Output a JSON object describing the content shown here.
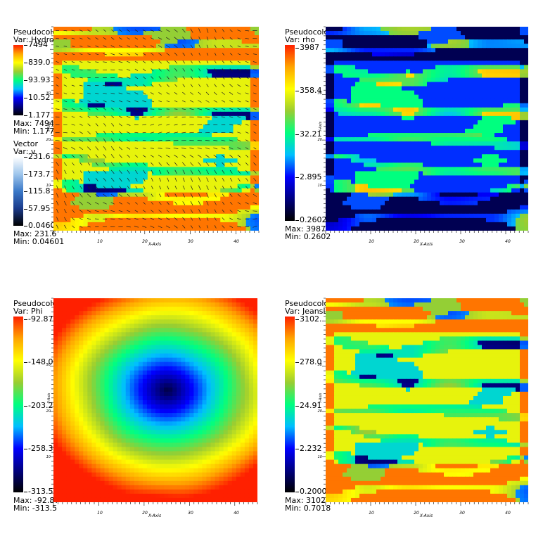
{
  "chart_data": [
    {
      "type": "heatmap",
      "title": "Pseudocolor",
      "variable_label": "Var: Hydro",
      "legend_ticks": [
        "7494",
        "839.0",
        "93.93",
        "10.52",
        "1.177"
      ],
      "max_label": "Max: 7494",
      "min_label": "Min: 1.177",
      "vector_plot": {
        "title": "Vector",
        "variable_label": "Var: v",
        "legend_ticks": [
          "231.6",
          "173.7",
          "115.8",
          "57.95",
          "0.04601"
        ],
        "max_label": "Max: 231.6",
        "min_label": "Min: 0.04601"
      },
      "xlabel": "X-Axis",
      "ylabel": "Y-Axis",
      "xticks": [
        "10",
        "20",
        "30",
        "40"
      ],
      "yticks": [
        "10",
        "20",
        "30"
      ],
      "xlim": [
        0,
        45
      ],
      "ylim": [
        0,
        45
      ],
      "colormap": "hot_desaturated_rainbow",
      "pattern": "filaments"
    },
    {
      "type": "heatmap",
      "title": "Pseudocolor",
      "variable_label": "Var: rho",
      "legend_ticks": [
        "3987",
        "358.4",
        "32.21",
        "2.895",
        "0.2602"
      ],
      "max_label": "Max: 3987",
      "min_label": "Min: 0.2602",
      "xlabel": "X-Axis",
      "ylabel": "Y-Axis",
      "xticks": [
        "10",
        "20",
        "30",
        "40"
      ],
      "yticks": [
        "10",
        "20",
        "30"
      ],
      "xlim": [
        0,
        45
      ],
      "ylim": [
        0,
        45
      ],
      "colormap": "hot_desaturated_rainbow",
      "pattern": "density"
    },
    {
      "type": "heatmap",
      "title": "Pseudocolor",
      "variable_label": "Var: Phi",
      "legend_ticks": [
        "-92.87",
        "-148.0",
        "-203.2",
        "-258.3",
        "-313.5"
      ],
      "max_label": "Max: -92.87",
      "min_label": "Min: -313.5",
      "xlabel": "X-Axis",
      "ylabel": "Y-Axis",
      "xticks": [
        "10",
        "20",
        "30",
        "40"
      ],
      "yticks": [
        "10",
        "20",
        "30"
      ],
      "xlim": [
        0,
        45
      ],
      "ylim": [
        0,
        45
      ],
      "colormap": "hot_desaturated_rainbow",
      "pattern": "potential"
    },
    {
      "type": "heatmap",
      "title": "Pseudocolor",
      "variable_label": "Var: JeansLength",
      "legend_ticks": [
        "3102.",
        "278.0",
        "24.91",
        "2.232",
        "0.2000"
      ],
      "max_label": "Max: 3102",
      "min_label": "Min: 0.7018",
      "xlabel": "X-Axis",
      "ylabel": "Y-Axis",
      "xticks": [
        "10",
        "20",
        "30",
        "40"
      ],
      "yticks": [
        "10",
        "20",
        "30"
      ],
      "xlim": [
        0,
        45
      ],
      "ylim": [
        0,
        45
      ],
      "colormap": "hot_desaturated_rainbow",
      "pattern": "filaments"
    }
  ],
  "colors": {
    "colormap_stops": [
      "#000000",
      "#000080",
      "#0000ff",
      "#00bfff",
      "#00ff7f",
      "#9acd32",
      "#ffff00",
      "#ffa500",
      "#ff2000"
    ],
    "vector_colormap_stops": [
      "#000000",
      "#1a3a8a",
      "#3a78c8",
      "#9fc6ec",
      "#ffffff"
    ],
    "vector_arrow": "#202020"
  }
}
